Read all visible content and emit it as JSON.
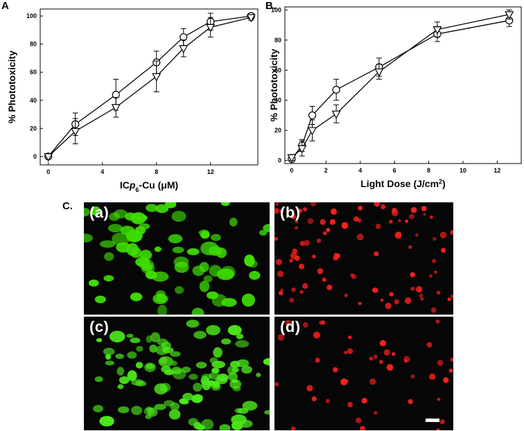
{
  "panel_labels": {
    "a": "A",
    "b": "B.",
    "c": "C."
  },
  "chart_data": [
    {
      "type": "line",
      "xlabel_pre": "IC",
      "xlabel_ital": "p",
      "xlabel_sub": "6",
      "xlabel_post": "-Cu (μM)",
      "ylabel": "% Phototoxicity",
      "xlim": [
        -0.6,
        15.5
      ],
      "ylim": [
        -6,
        105
      ],
      "xticks": [
        0,
        4,
        8,
        12
      ],
      "yticks": [
        0,
        20,
        40,
        60,
        80,
        100
      ],
      "series": [
        {
          "marker": "circle",
          "x": [
            0,
            2,
            5,
            8,
            10,
            12,
            15
          ],
          "y": [
            0,
            23,
            44,
            67,
            85,
            96,
            100
          ],
          "err": [
            0,
            8,
            11,
            8,
            6,
            6,
            2
          ]
        },
        {
          "marker": "triangle",
          "x": [
            0,
            2,
            5,
            8,
            10,
            12,
            15
          ],
          "y": [
            0,
            18,
            35,
            57,
            77,
            92,
            99
          ],
          "err": [
            0,
            9,
            7,
            11,
            6,
            7,
            2
          ]
        }
      ]
    },
    {
      "type": "line",
      "xlabel_pre": "Light Dose (J/cm",
      "xlabel_sup": "2",
      "xlabel_post": ")",
      "ylabel": "% Phototoxicity",
      "xlim": [
        -0.4,
        13.4
      ],
      "ylim": [
        -2,
        102
      ],
      "xticks": [
        0,
        2,
        4,
        6,
        8,
        10,
        12
      ],
      "yticks": [
        0,
        20,
        40,
        60,
        80,
        100
      ],
      "series": [
        {
          "marker": "circle",
          "x": [
            0,
            0.6,
            1.2,
            2.6,
            5.1,
            8.5,
            12.7
          ],
          "y": [
            1,
            10,
            30,
            47,
            62,
            84,
            93
          ],
          "err": [
            3,
            4,
            6,
            7,
            6,
            5,
            4
          ]
        },
        {
          "marker": "triangle",
          "x": [
            0,
            0.6,
            1.2,
            2.6,
            5.1,
            8.5,
            12.7
          ],
          "y": [
            2,
            8,
            20,
            31,
            59,
            87,
            97
          ],
          "err": [
            2,
            5,
            7,
            6,
            5,
            5,
            3
          ]
        }
      ]
    }
  ],
  "micrographs": [
    {
      "label": "(a)",
      "color": "#3fe000",
      "kind": "live-spread"
    },
    {
      "label": "(b)",
      "color": "#ff2020",
      "kind": "dead-dots"
    },
    {
      "label": "(c)",
      "color": "#4ce81a",
      "kind": "live-clustered"
    },
    {
      "label": "(d)",
      "color": "#ff2020",
      "kind": "dead-sparse"
    }
  ]
}
